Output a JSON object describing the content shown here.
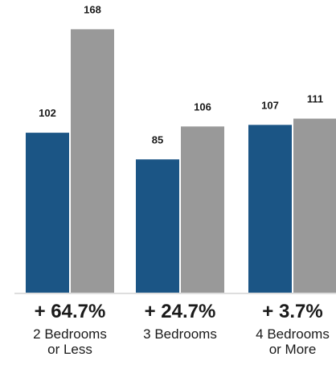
{
  "chart_data": {
    "type": "bar",
    "categories": [
      [
        "2 Bedrooms",
        "or Less"
      ],
      [
        "3 Bedrooms"
      ],
      [
        "4 Bedrooms",
        "or More"
      ]
    ],
    "series": [
      {
        "values": [
          102,
          85,
          107
        ],
        "color": "#1b5585"
      },
      {
        "values": [
          168,
          106,
          111
        ],
        "color": "#999999"
      }
    ],
    "change_labels": [
      "+ 64.7%",
      "+ 24.7%",
      "+ 3.7%"
    ],
    "ylim": [
      0,
      180
    ],
    "grid": false,
    "legend": "none"
  }
}
